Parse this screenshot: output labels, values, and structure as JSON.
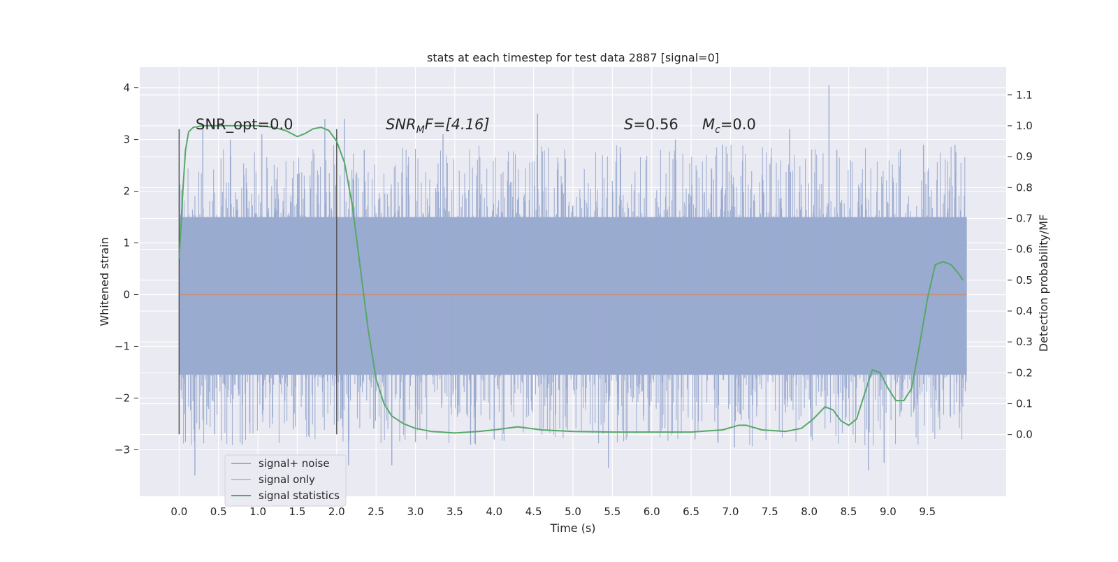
{
  "chart_data": {
    "type": "line",
    "title": "stats at each timestep for test data 2887 [signal=0]",
    "xlabel": "Time (s)",
    "ylabel_left": "Whitened strain",
    "ylabel_right": "Detection probability/MF",
    "xlim": [
      -0.5,
      10.5
    ],
    "ylim_left": [
      -3.9,
      4.4
    ],
    "ylim_right": [
      -0.2,
      1.19
    ],
    "x_ticks": [
      "0.0",
      "0.5",
      "1.0",
      "1.5",
      "2.0",
      "2.5",
      "3.0",
      "3.5",
      "4.0",
      "4.5",
      "5.0",
      "5.5",
      "6.0",
      "6.5",
      "7.0",
      "7.5",
      "8.0",
      "8.5",
      "9.0",
      "9.5"
    ],
    "y_left_ticks": [
      "4",
      "3",
      "2",
      "1",
      "0",
      "−1",
      "−2",
      "−3"
    ],
    "y_right_ticks": [
      "1.1",
      "1.0",
      "0.9",
      "0.8",
      "0.7",
      "0.6",
      "0.5",
      "0.4",
      "0.3",
      "0.2",
      "0.1",
      "0.0"
    ],
    "grid": true,
    "legend": "bottom-left",
    "annotations": {
      "snr_opt": "SNR_opt=0.0",
      "snr_mf_main": "SNR",
      "snr_mf_sub": "M",
      "snr_mf_rest": "F=[4.16]",
      "s_main": "S",
      "s_rest": "=0.56",
      "mc_main": "M",
      "mc_sub": "c",
      "mc_rest": "=0.0"
    },
    "window_markers": {
      "x": [
        0.0,
        2.0
      ],
      "y_range": [
        -2.7,
        3.2
      ]
    },
    "colors": {
      "background": "#eaeaf2",
      "grid": "#ffffff",
      "signal_noise": "#9aabd0",
      "signal_only": "#dd8452",
      "signal_statistics": "#55a868",
      "marker": "#555555"
    },
    "series": [
      {
        "name": "signal+ noise",
        "axis": "left",
        "note_band": {
          "x_range": [
            0.0,
            10.0
          ],
          "dense_range": [
            -1.55,
            1.5
          ]
        },
        "spikes": [
          [
            0.2,
            -3.5
          ],
          [
            0.3,
            3.3
          ],
          [
            0.45,
            -2.7
          ],
          [
            0.8,
            -2.9
          ],
          [
            1.45,
            -2.6
          ],
          [
            1.85,
            3.4
          ],
          [
            2.1,
            3.4
          ],
          [
            2.15,
            -3.3
          ],
          [
            2.35,
            2.8
          ],
          [
            2.7,
            -3.3
          ],
          [
            3.35,
            3.1
          ],
          [
            3.7,
            -2.9
          ],
          [
            4.55,
            3.5
          ],
          [
            5.45,
            -3.35
          ],
          [
            6.55,
            -2.8
          ],
          [
            7.05,
            -2.95
          ],
          [
            7.75,
            3.2
          ],
          [
            8.25,
            4.05
          ],
          [
            8.35,
            2.8
          ],
          [
            8.75,
            -3.4
          ],
          [
            8.95,
            -3.25
          ],
          [
            9.45,
            2.9
          ],
          [
            9.85,
            2.9
          ],
          [
            5.6,
            2.85
          ],
          [
            6.3,
            3.0
          ],
          [
            3.0,
            -2.85
          ],
          [
            4.0,
            -2.8
          ],
          [
            1.05,
            3.1
          ],
          [
            0.65,
            3.0
          ],
          [
            6.9,
            2.9
          ]
        ]
      },
      {
        "name": "signal only",
        "axis": "left",
        "x": [
          0.0,
          10.0
        ],
        "y": [
          0.0,
          0.0
        ]
      },
      {
        "name": "signal statistics",
        "axis": "right",
        "x": [
          0.0,
          0.05,
          0.08,
          0.12,
          0.18,
          0.3,
          0.6,
          1.0,
          1.2,
          1.35,
          1.5,
          1.6,
          1.7,
          1.8,
          1.9,
          2.0,
          2.1,
          2.2,
          2.3,
          2.4,
          2.5,
          2.6,
          2.7,
          2.85,
          3.0,
          3.2,
          3.5,
          3.8,
          4.0,
          4.3,
          4.6,
          5.0,
          5.5,
          6.0,
          6.5,
          6.9,
          7.1,
          7.2,
          7.4,
          7.7,
          7.9,
          8.05,
          8.2,
          8.3,
          8.4,
          8.5,
          8.6,
          8.7,
          8.8,
          8.9,
          9.0,
          9.1,
          9.2,
          9.3,
          9.4,
          9.5,
          9.6,
          9.7,
          9.8,
          9.9,
          9.95
        ],
        "y": [
          0.57,
          0.8,
          0.92,
          0.98,
          0.995,
          1.0,
          1.0,
          1.0,
          0.995,
          0.985,
          0.965,
          0.975,
          0.99,
          0.995,
          0.985,
          0.95,
          0.88,
          0.74,
          0.54,
          0.34,
          0.18,
          0.1,
          0.06,
          0.035,
          0.02,
          0.01,
          0.005,
          0.01,
          0.015,
          0.025,
          0.015,
          0.01,
          0.008,
          0.008,
          0.008,
          0.015,
          0.03,
          0.03,
          0.015,
          0.01,
          0.02,
          0.05,
          0.09,
          0.08,
          0.045,
          0.03,
          0.05,
          0.13,
          0.21,
          0.2,
          0.15,
          0.11,
          0.11,
          0.15,
          0.29,
          0.44,
          0.55,
          0.56,
          0.55,
          0.52,
          0.5
        ]
      }
    ]
  }
}
